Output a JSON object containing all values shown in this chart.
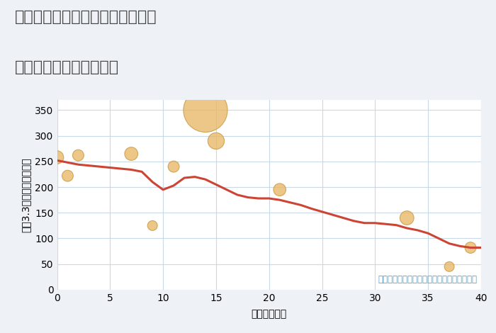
{
  "title_line1": "神奈川県川崎市中原区木月大町の",
  "title_line2": "築年数別中古戸建て価格",
  "xlabel": "築年数（年）",
  "ylabel": "坪（3.3㎡）単価（万円）",
  "bg_color": "#eef2f6",
  "plot_bg_color": "#ffffff",
  "line_color": "#cc4433",
  "line_width": 2.2,
  "line_x": [
    0,
    1,
    2,
    3,
    4,
    5,
    6,
    7,
    8,
    9,
    10,
    11,
    12,
    13,
    14,
    15,
    16,
    17,
    18,
    19,
    20,
    21,
    22,
    23,
    24,
    25,
    26,
    27,
    28,
    29,
    30,
    31,
    32,
    33,
    34,
    35,
    36,
    37,
    38,
    39,
    40
  ],
  "line_y": [
    252,
    248,
    244,
    242,
    240,
    238,
    236,
    234,
    230,
    210,
    195,
    203,
    218,
    220,
    215,
    205,
    195,
    185,
    180,
    178,
    178,
    175,
    170,
    165,
    158,
    152,
    146,
    140,
    134,
    130,
    130,
    128,
    126,
    120,
    116,
    110,
    100,
    90,
    85,
    82,
    82
  ],
  "scatter_x": [
    0,
    1,
    2,
    7,
    9,
    11,
    14,
    15,
    21,
    33,
    37,
    39
  ],
  "scatter_y": [
    258,
    222,
    262,
    265,
    125,
    240,
    350,
    290,
    195,
    140,
    45,
    82
  ],
  "scatter_sizes": [
    180,
    130,
    130,
    180,
    100,
    130,
    2000,
    280,
    160,
    200,
    100,
    130
  ],
  "scatter_color": "#e8b96a",
  "scatter_alpha": 0.8,
  "scatter_edge_color": "#c9973e",
  "scatter_edge_width": 0.8,
  "xlim": [
    0,
    40
  ],
  "ylim": [
    0,
    370
  ],
  "xticks": [
    0,
    5,
    10,
    15,
    20,
    25,
    30,
    35,
    40
  ],
  "yticks": [
    0,
    50,
    100,
    150,
    200,
    250,
    300,
    350
  ],
  "grid_color": "#c5d5e5",
  "grid_alpha": 0.9,
  "note_text": "円の大きさは、取引のあった物件面積を示す",
  "note_color": "#5599bb",
  "note_fontsize": 8.5,
  "title_fontsize": 16,
  "axis_label_fontsize": 10,
  "tick_fontsize": 10
}
